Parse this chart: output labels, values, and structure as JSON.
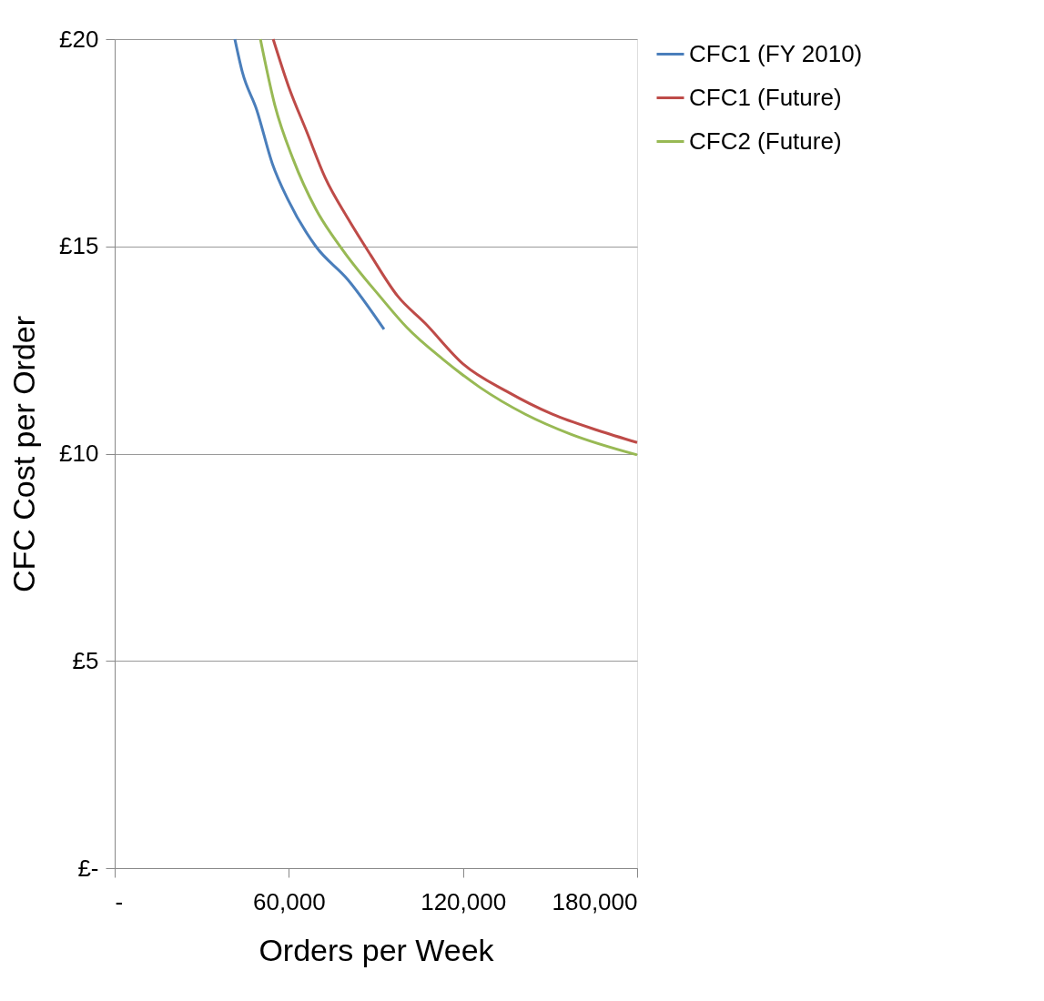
{
  "chart_data": {
    "type": "line",
    "xlabel": "Orders per Week",
    "ylabel": "CFC Cost per Order",
    "xlim": [
      0,
      180000
    ],
    "ylim": [
      0,
      20
    ],
    "xticks": [
      {
        "value": 0,
        "label": "-"
      },
      {
        "value": 60000,
        "label": "60,000"
      },
      {
        "value": 120000,
        "label": "120,000"
      },
      {
        "value": 180000,
        "label": "180,000"
      }
    ],
    "yticks": [
      {
        "value": 0,
        "label": "£-"
      },
      {
        "value": 5,
        "label": "£5"
      },
      {
        "value": 10,
        "label": "£10"
      },
      {
        "value": 15,
        "label": "£15"
      },
      {
        "value": 20,
        "label": "£20"
      }
    ],
    "grid": "y",
    "legend": "right",
    "marker": "none",
    "line_style": "solid",
    "series": [
      {
        "name": "CFC1 (FY 2010)",
        "color": "#4a7ebb",
        "x": [
          41400,
          44000,
          48900,
          54300,
          59900,
          69300,
          80300,
          92800
        ],
        "values": [
          20,
          19.2,
          18.3,
          17.0,
          16.1,
          15.0,
          14.2,
          13.0
        ]
      },
      {
        "name": "CFC1 (Future)",
        "color": "#be4b48",
        "x": [
          54600,
          59900,
          66200,
          72500,
          80300,
          88100,
          97500,
          106900,
          120100,
          135100,
          150800,
          166500,
          180000
        ],
        "values": [
          20,
          18.86,
          17.76,
          16.66,
          15.68,
          14.8,
          13.8,
          13.15,
          12.16,
          11.5,
          10.95,
          10.56,
          10.27
        ]
      },
      {
        "name": "CFC2 (Future)",
        "color": "#98b954",
        "x": [
          50200,
          55200,
          61500,
          69300,
          78700,
          91300,
          100700,
          113200,
          125800,
          141500,
          157100,
          180000
        ],
        "values": [
          20,
          18.4,
          17.1,
          15.9,
          14.9,
          13.8,
          13.04,
          12.27,
          11.6,
          10.95,
          10.47,
          9.97
        ]
      }
    ]
  }
}
